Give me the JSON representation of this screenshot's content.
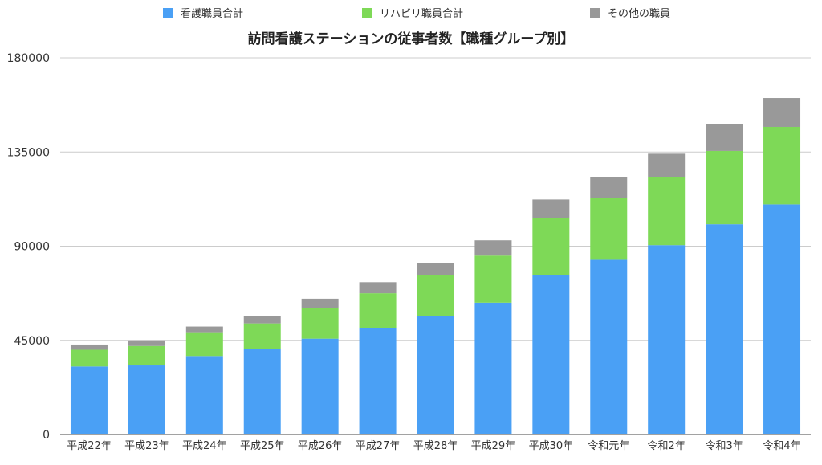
{
  "chart_data": {
    "type": "bar",
    "stacked": true,
    "title": "訪問看護ステーションの従事者数【職種グループ別】",
    "categories": [
      "平成22年",
      "平成23年",
      "平成24年",
      "平成25年",
      "平成26年",
      "平成27年",
      "平成28年",
      "平成29年",
      "平成30年",
      "令和元年",
      "令和2年",
      "令和3年",
      "令和4年"
    ],
    "series": [
      {
        "name": "看護職員合計",
        "color": "#4aa0f5",
        "values": [
          32500,
          33000,
          37500,
          40800,
          45800,
          50800,
          56500,
          63000,
          76000,
          83500,
          90500,
          100500,
          110000
        ]
      },
      {
        "name": "リハビリ職員合計",
        "color": "#7ed957",
        "values": [
          8000,
          9300,
          11000,
          12300,
          14800,
          16700,
          19500,
          22500,
          27500,
          29500,
          32500,
          35000,
          37000
        ]
      },
      {
        "name": "その他の職員",
        "color": "#999999",
        "values": [
          2500,
          2700,
          3100,
          3400,
          4300,
          5300,
          6000,
          7300,
          8800,
          10000,
          11200,
          13000,
          13800
        ]
      }
    ],
    "ylim": [
      0,
      180000
    ],
    "yticks": [
      "0",
      "45000",
      "90000",
      "135000",
      "180000"
    ],
    "grid": true,
    "legend_position": "top"
  }
}
